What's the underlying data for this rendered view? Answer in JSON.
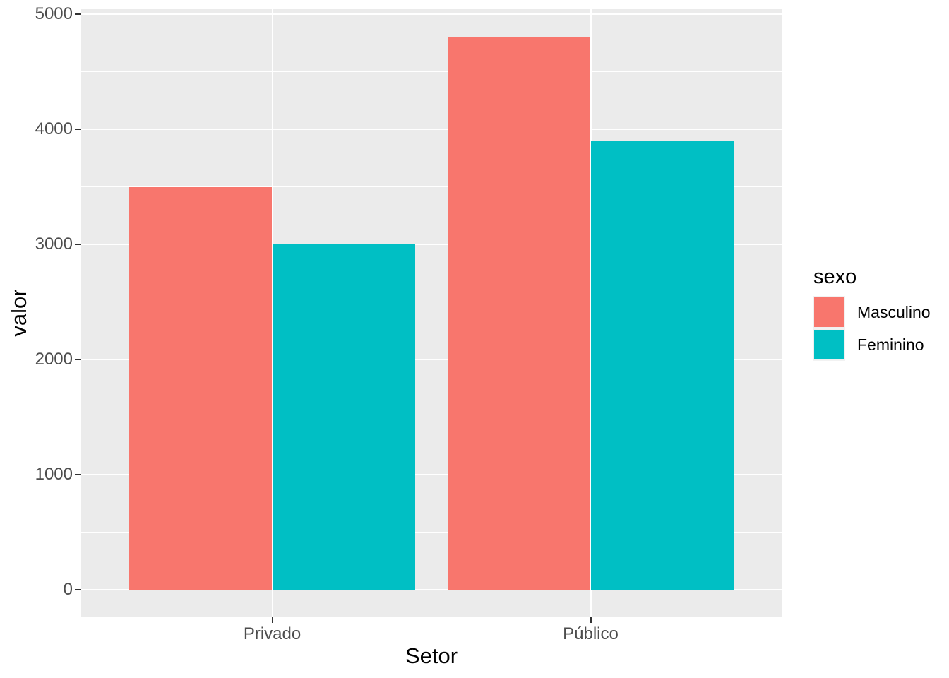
{
  "chart_data": {
    "type": "bar",
    "title": "",
    "xlabel": "Setor",
    "ylabel": "valor",
    "categories": [
      "Privado",
      "Público"
    ],
    "series": [
      {
        "name": "Masculino",
        "color": "#F8766D",
        "values": [
          3500,
          4800
        ]
      },
      {
        "name": "Feminino",
        "color": "#00BFC4",
        "values": [
          3000,
          3900
        ]
      }
    ],
    "legend_title": "sexo",
    "legend_position": "right",
    "y_axis": {
      "min": 0,
      "max": 5000,
      "major_ticks": [
        0,
        1000,
        2000,
        3000,
        4000,
        5000
      ],
      "minor_ticks": [
        500,
        1500,
        2500,
        3500,
        4500
      ],
      "tick_labels": [
        "0",
        "1000",
        "2000",
        "3000",
        "4000",
        "5000"
      ]
    },
    "grid": true,
    "colors": {
      "panel_background": "#EBEBEB",
      "gridline": "#FFFFFF",
      "tick_text": "#4D4D4D",
      "title_text": "#000000",
      "tick_mark": "#333333"
    }
  }
}
